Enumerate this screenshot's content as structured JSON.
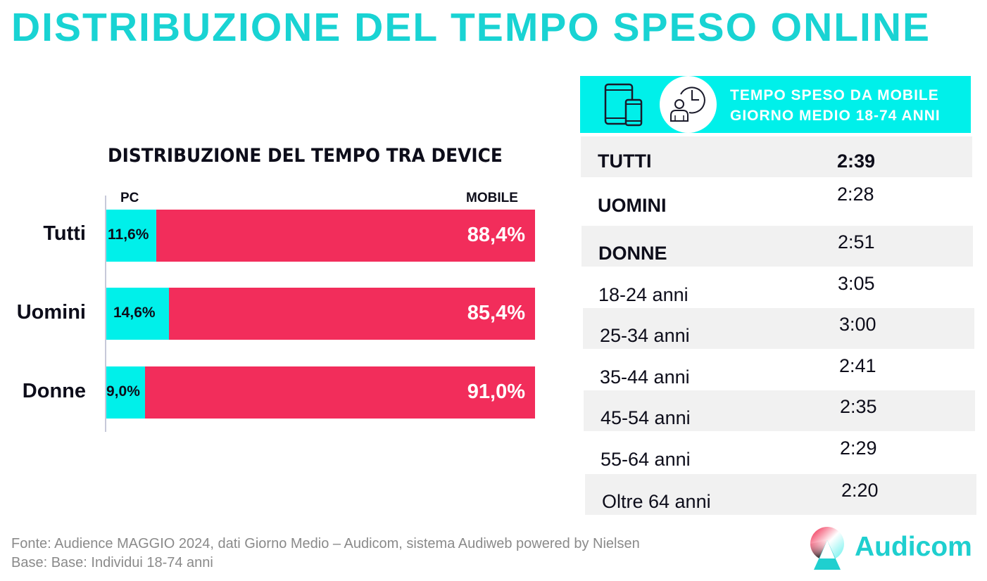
{
  "title": "DISTRIBUZIONE DEL TEMPO SPESO ONLINE",
  "chart_data": {
    "type": "bar",
    "stacked": true,
    "orientation": "horizontal",
    "title": "DISTRIBUZIONE DEL TEMPO TRA DEVICE",
    "categories": [
      "Tutti",
      "Uomini",
      "Donne"
    ],
    "series": [
      {
        "name": "PC",
        "values": [
          11.6,
          14.6,
          9.0
        ],
        "labels": [
          "11,6%",
          "14,6%",
          "9,0%"
        ],
        "color": "#00f0ea"
      },
      {
        "name": "MOBILE",
        "values": [
          88.4,
          85.4,
          91.0
        ],
        "labels": [
          "88,4%",
          "85,4%",
          "91,0%"
        ],
        "color": "#f22d5b"
      }
    ],
    "xlim": [
      0,
      100
    ],
    "legend": "top"
  },
  "panel": {
    "title_line1": "TEMPO SPESO DA MOBILE",
    "title_line2": "GIORNO MEDIO 18-74 ANNI",
    "icons": [
      "devices-icon",
      "user-clock-icon"
    ],
    "rows": [
      {
        "label": "TUTTI",
        "value": "2:39"
      },
      {
        "label": "UOMINI",
        "value": "2:28"
      },
      {
        "label": "DONNE",
        "value": "2:51"
      },
      {
        "label": "18-24 anni",
        "value": "3:05"
      },
      {
        "label": "25-34 anni",
        "value": "3:00"
      },
      {
        "label": "35-44 anni",
        "value": "2:41"
      },
      {
        "label": "45-54 anni",
        "value": "2:35"
      },
      {
        "label": "55-64 anni",
        "value": "2:29"
      },
      {
        "label": "Oltre 64 anni",
        "value": "2:20"
      }
    ]
  },
  "footer": {
    "source": "Fonte: Audience MAGGIO 2024, dati Giorno Medio – Audicom, sistema Audiweb powered by Nielsen",
    "base": "Base:  Base:  Individui 18-74 anni"
  },
  "logo": {
    "text": "Audicom"
  },
  "colors": {
    "accent": "#19d3d3",
    "pc": "#00f0ea",
    "mobile": "#f22d5b",
    "row_shade": "#f1f1f1"
  }
}
